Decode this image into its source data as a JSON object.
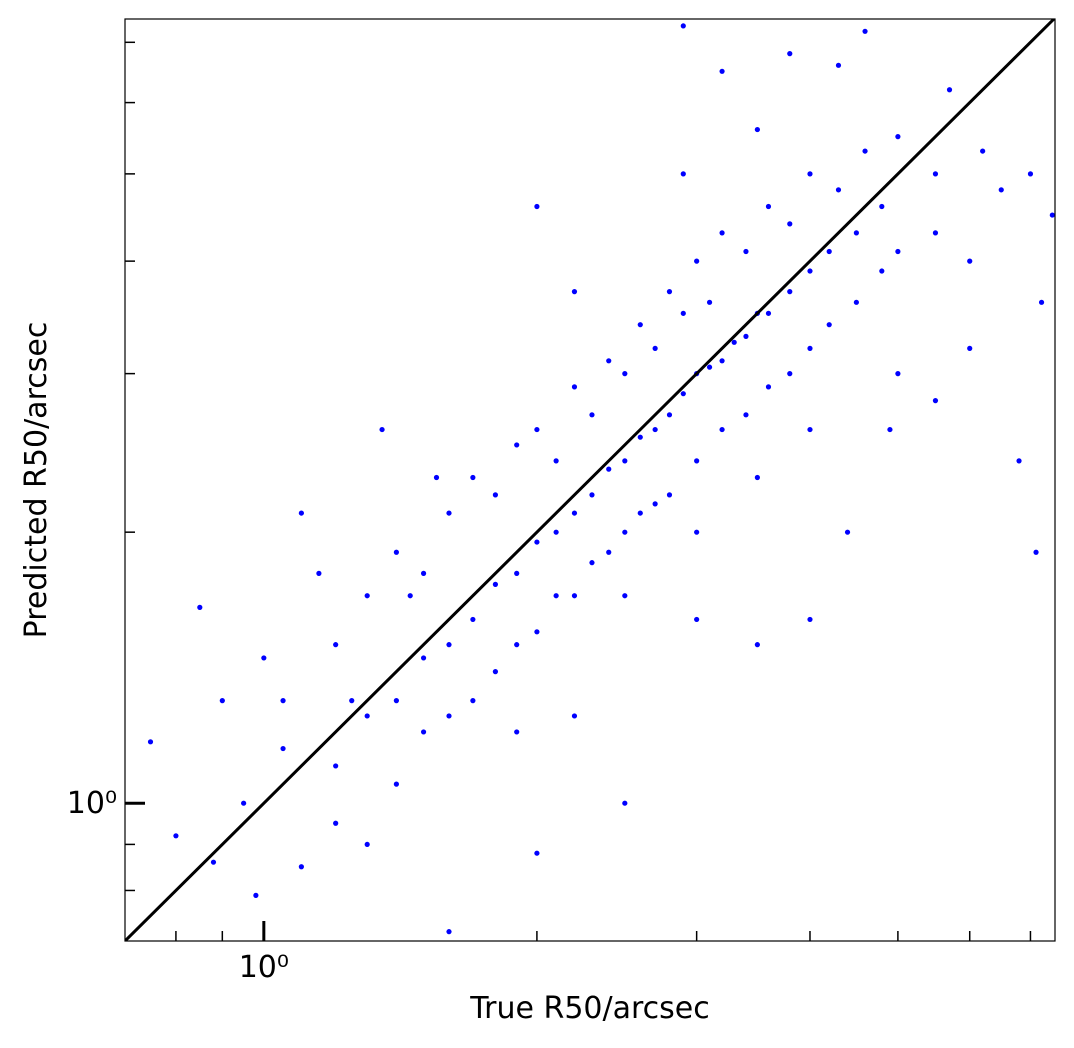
{
  "chart_data": {
    "type": "scatter",
    "xlabel": "True R50/arcsec",
    "ylabel": "Predicted R50/arcsec",
    "xscale": "log",
    "yscale": "log",
    "xlim": [
      0.703,
      7.45
    ],
    "ylim": [
      0.703,
      7.43
    ],
    "xticks": [
      {
        "value": 1,
        "label": "10⁰"
      }
    ],
    "yticks": [
      {
        "value": 1,
        "label": "10⁰"
      }
    ],
    "xminorticks": [
      0.8,
      0.9,
      2,
      3,
      4,
      5,
      6,
      7
    ],
    "yminorticks": [
      0.8,
      0.9,
      2,
      3,
      4,
      5,
      6,
      7
    ],
    "color": "#0000ff",
    "reference_line": {
      "x": [
        0.703,
        7.45
      ],
      "y": [
        0.703,
        7.45
      ],
      "color": "#000000"
    },
    "x": [
      1.2,
      1.3,
      1.4,
      1.5,
      1.6,
      1.7,
      1.8,
      1.9,
      2.0,
      2.1,
      2.2,
      2.3,
      2.4,
      2.5,
      2.6,
      2.7,
      2.8,
      2.9,
      3.0,
      3.1,
      3.2,
      3.3,
      3.4,
      3.5,
      3.6,
      3.8,
      4.0,
      4.2,
      4.5,
      4.8,
      1.2,
      1.3,
      1.4,
      1.5,
      1.6,
      1.7,
      1.8,
      1.9,
      2.0,
      2.1,
      2.2,
      2.3,
      2.4,
      2.5,
      2.6,
      2.7,
      2.8,
      2.9,
      3.0,
      3.1,
      3.2,
      3.4,
      3.6,
      3.8,
      4.0,
      4.3,
      4.6,
      5.0,
      3.5,
      2.9,
      1.4,
      1.5,
      1.6,
      1.7,
      1.8,
      1.9,
      2.0,
      2.1,
      2.2,
      2.3,
      2.4,
      2.5,
      2.6,
      2.7,
      2.8,
      3.0,
      3.2,
      3.4,
      3.6,
      3.8,
      4.0,
      4.2,
      4.5,
      4.8,
      5.0,
      5.5,
      3.5,
      4.0,
      3.0,
      2.5,
      0.75,
      0.85,
      0.8,
      0.9,
      0.95,
      1.0,
      1.05,
      1.1,
      0.88,
      1.15,
      1.2,
      1.3,
      1.1,
      1.35,
      1.45,
      1.55,
      2.0,
      2.2,
      2.9,
      3.2,
      3.8,
      4.3,
      4.6,
      5.7,
      6.2,
      6.5,
      7.0,
      7.4,
      7.2,
      6.0,
      5.5,
      4.9,
      6.8,
      7.1,
      4.0,
      3.5,
      2.5,
      2.0,
      1.6,
      5.0,
      6.0,
      5.5,
      1.25,
      1.05,
      0.98,
      1.9,
      2.2,
      3.0,
      4.4
    ],
    "values": [
      1.1,
      1.25,
      1.3,
      1.45,
      1.5,
      1.6,
      1.75,
      1.8,
      1.95,
      2.0,
      2.1,
      2.2,
      2.35,
      2.4,
      2.55,
      2.6,
      2.7,
      2.85,
      3.0,
      3.05,
      3.1,
      3.25,
      3.3,
      3.5,
      3.5,
      3.7,
      3.9,
      4.1,
      4.3,
      4.6,
      1.5,
      1.7,
      1.9,
      1.8,
      2.1,
      2.3,
      2.2,
      2.5,
      2.6,
      2.4,
      2.9,
      2.7,
      3.1,
      3.0,
      3.4,
      3.2,
      3.7,
      3.5,
      4.0,
      3.6,
      4.3,
      4.1,
      4.6,
      4.4,
      5.0,
      4.8,
      5.3,
      5.5,
      5.6,
      5.0,
      1.05,
      1.2,
      1.25,
      1.3,
      1.4,
      1.5,
      1.55,
      1.7,
      1.7,
      1.85,
      1.9,
      2.0,
      2.1,
      2.15,
      2.2,
      2.4,
      2.6,
      2.7,
      2.9,
      3.0,
      3.2,
      3.4,
      3.6,
      3.9,
      4.1,
      4.3,
      2.3,
      2.6,
      2.0,
      1.7,
      1.17,
      1.65,
      0.92,
      1.3,
      1.0,
      1.45,
      1.15,
      0.85,
      0.86,
      1.8,
      0.95,
      0.9,
      2.1,
      2.6,
      1.7,
      2.3,
      4.6,
      3.7,
      7.3,
      6.5,
      6.8,
      6.6,
      7.2,
      6.2,
      5.3,
      4.8,
      5.0,
      4.5,
      3.6,
      3.2,
      2.8,
      2.6,
      2.4,
      1.9,
      1.6,
      1.5,
      1.0,
      0.88,
      0.72,
      3.0,
      4.0,
      5.0,
      1.3,
      1.3,
      0.79,
      1.2,
      1.25,
      1.6,
      2.0
    ]
  }
}
